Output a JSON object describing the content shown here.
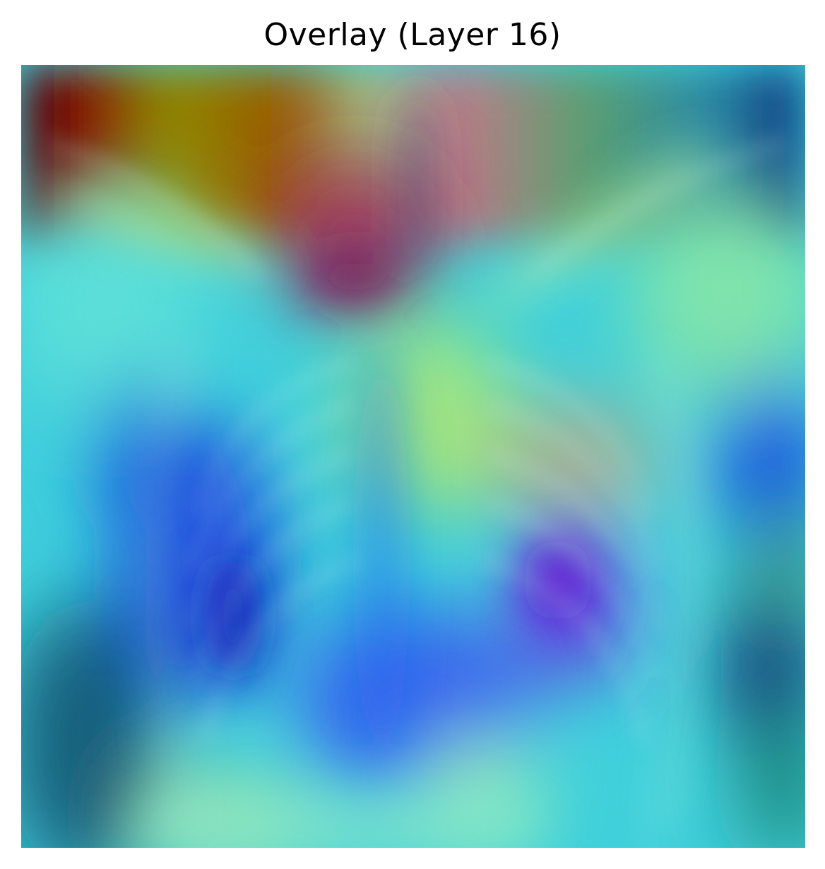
{
  "figure": {
    "title": "Overlay (Layer 16)"
  },
  "colors": {
    "background": "#ffffff",
    "title_text": "#000000",
    "heat_low": "#1a3cff",
    "heat_mid_low": "#3fd8e6",
    "heat_mid": "#9be88a",
    "heat_high": "#d8a21a",
    "heat_peak": "#7a0000"
  },
  "image": {
    "kind": "grad-cam-style heatmap overlay on chest x-ray",
    "colormap": "jet"
  }
}
